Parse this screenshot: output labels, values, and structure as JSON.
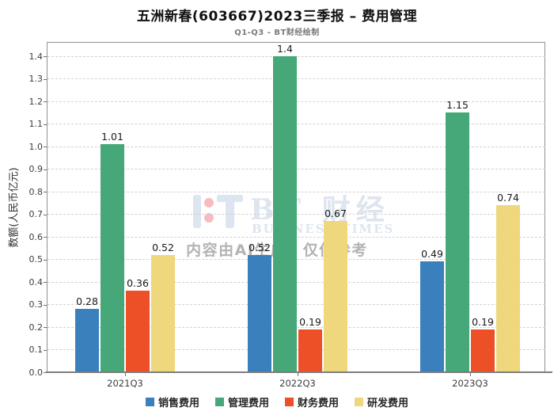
{
  "watermark": {
    "logo_main": "BT 财经",
    "logo_sub": "BUSINESS TIMES",
    "disclaimer": "内容由AI生成，仅供参考"
  },
  "chart_data": {
    "type": "bar",
    "title": "五洲新春(603667)2023三季报 – 费用管理",
    "subtitle": "Q1-Q3 - BT财经绘制",
    "ylabel": "数额(人民币亿元)",
    "xlabel": "",
    "categories": [
      "2021Q3",
      "2022Q3",
      "2023Q3"
    ],
    "series": [
      {
        "name": "销售费用",
        "color": "#3a80bd",
        "values": [
          0.28,
          0.52,
          0.49
        ]
      },
      {
        "name": "管理费用",
        "color": "#46a878",
        "values": [
          1.01,
          1.4,
          1.15
        ]
      },
      {
        "name": "财务费用",
        "color": "#ed5027",
        "values": [
          0.36,
          0.19,
          0.19
        ]
      },
      {
        "name": "研发费用",
        "color": "#efd77e",
        "values": [
          0.52,
          0.67,
          0.74
        ]
      }
    ],
    "ylim": [
      0,
      1.46
    ],
    "yticks": [
      0.0,
      0.1,
      0.2,
      0.3,
      0.4,
      0.5,
      0.6,
      0.7,
      0.8,
      0.9,
      1.0,
      1.1,
      1.2,
      1.3,
      1.4
    ],
    "grid": true,
    "grid_style": "dashed",
    "legend_position": "bottom",
    "value_labels": true
  }
}
